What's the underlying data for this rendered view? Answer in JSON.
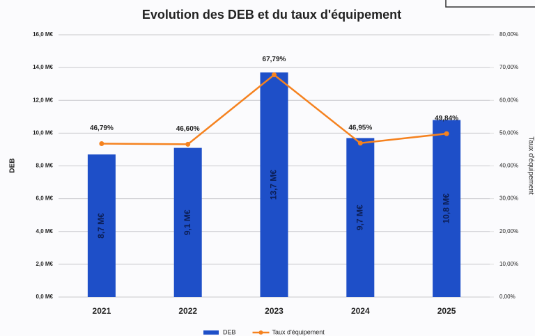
{
  "chart_data": {
    "type": "bar",
    "title": "Evolution des DEB et du taux d'équipement",
    "y_label": "DEB",
    "y2_label": "Taux d'équipement",
    "categories": [
      "2021",
      "2022",
      "2023",
      "2024",
      "2025"
    ],
    "series": [
      {
        "name": "DEB",
        "type": "bar",
        "color": "#1e4fc8",
        "values": [
          8.7,
          9.1,
          13.7,
          9.7,
          10.8
        ],
        "value_labels": [
          "8,7 M€",
          "9,1 M€",
          "13,7 M€",
          "9,7 M€",
          "10,8 M€"
        ]
      },
      {
        "name": "Taux d'équipement",
        "type": "line",
        "axis": "y2",
        "color": "#f5821f",
        "values": [
          46.79,
          46.6,
          67.79,
          46.95,
          49.84
        ],
        "value_labels": [
          "46,79%",
          "46,60%",
          "67,79%",
          "46,95%",
          "49,84%"
        ]
      }
    ],
    "ylim": [
      0,
      16
    ],
    "yticks": [
      {
        "value": 0,
        "label": "0,0 M€"
      },
      {
        "value": 2,
        "label": "2,0 M€"
      },
      {
        "value": 4,
        "label": "4,0 M€"
      },
      {
        "value": 6,
        "label": "6,0 M€"
      },
      {
        "value": 8,
        "label": "8,0 M€"
      },
      {
        "value": 10,
        "label": "10,0 M€"
      },
      {
        "value": 12,
        "label": "12,0 M€"
      },
      {
        "value": 14,
        "label": "14,0 M€"
      },
      {
        "value": 16,
        "label": "16,0 M€"
      }
    ],
    "y2lim": [
      0,
      80
    ],
    "y2ticks": [
      {
        "value": 0,
        "label": "0,00%"
      },
      {
        "value": 10,
        "label": "10,00%"
      },
      {
        "value": 20,
        "label": "20,00%"
      },
      {
        "value": 30,
        "label": "30,00%"
      },
      {
        "value": 40,
        "label": "40,00%"
      },
      {
        "value": 50,
        "label": "50,00%"
      },
      {
        "value": 60,
        "label": "60,00%"
      },
      {
        "value": 70,
        "label": "70,00%"
      },
      {
        "value": 80,
        "label": "80,00%"
      }
    ],
    "grid": true,
    "legend": "bottom"
  }
}
